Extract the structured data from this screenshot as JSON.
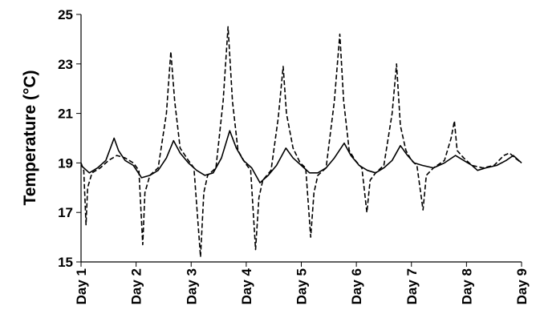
{
  "chart_data": {
    "type": "line",
    "title": "",
    "xlabel": "",
    "ylabel": "Temperature (°C)",
    "ylim": [
      15,
      25
    ],
    "xlim": [
      1,
      9
    ],
    "yticks": [
      15,
      17,
      19,
      21,
      23,
      25
    ],
    "xticks": [
      {
        "value": 1,
        "label": "Day 1"
      },
      {
        "value": 2,
        "label": "Day 2"
      },
      {
        "value": 3,
        "label": "Day 3"
      },
      {
        "value": 4,
        "label": "Day 4"
      },
      {
        "value": 5,
        "label": "Day 5"
      },
      {
        "value": 6,
        "label": "Day 6"
      },
      {
        "value": 7,
        "label": "Day 7"
      },
      {
        "value": 8,
        "label": "Day 8"
      },
      {
        "value": 9,
        "label": "Day 9"
      }
    ],
    "grid": false,
    "legend": "none",
    "series": [
      {
        "style": "dashed",
        "color": "#000000",
        "points": [
          [
            1.0,
            19.0
          ],
          [
            1.05,
            18.7
          ],
          [
            1.09,
            16.5
          ],
          [
            1.12,
            18.0
          ],
          [
            1.2,
            18.6
          ],
          [
            1.35,
            18.8
          ],
          [
            1.5,
            19.1
          ],
          [
            1.65,
            19.3
          ],
          [
            1.8,
            19.2
          ],
          [
            1.95,
            19.0
          ],
          [
            2.05,
            18.7
          ],
          [
            2.12,
            15.7
          ],
          [
            2.16,
            17.8
          ],
          [
            2.25,
            18.5
          ],
          [
            2.4,
            18.8
          ],
          [
            2.55,
            21.0
          ],
          [
            2.63,
            23.5
          ],
          [
            2.7,
            21.5
          ],
          [
            2.8,
            19.6
          ],
          [
            2.95,
            19.1
          ],
          [
            3.05,
            18.8
          ],
          [
            3.17,
            15.2
          ],
          [
            3.23,
            17.8
          ],
          [
            3.3,
            18.5
          ],
          [
            3.45,
            18.8
          ],
          [
            3.58,
            21.5
          ],
          [
            3.67,
            24.5
          ],
          [
            3.75,
            21.5
          ],
          [
            3.85,
            19.5
          ],
          [
            3.98,
            19.0
          ],
          [
            4.08,
            18.7
          ],
          [
            4.17,
            15.5
          ],
          [
            4.23,
            17.6
          ],
          [
            4.3,
            18.3
          ],
          [
            4.45,
            18.7
          ],
          [
            4.58,
            20.8
          ],
          [
            4.67,
            22.9
          ],
          [
            4.73,
            21.0
          ],
          [
            4.85,
            19.6
          ],
          [
            4.98,
            19.0
          ],
          [
            5.08,
            18.8
          ],
          [
            5.17,
            16.0
          ],
          [
            5.23,
            17.8
          ],
          [
            5.3,
            18.5
          ],
          [
            5.45,
            18.8
          ],
          [
            5.6,
            21.5
          ],
          [
            5.7,
            24.2
          ],
          [
            5.77,
            21.5
          ],
          [
            5.87,
            19.5
          ],
          [
            5.98,
            19.1
          ],
          [
            6.1,
            18.8
          ],
          [
            6.19,
            17.0
          ],
          [
            6.25,
            18.3
          ],
          [
            6.35,
            18.6
          ],
          [
            6.5,
            18.9
          ],
          [
            6.65,
            21.0
          ],
          [
            6.73,
            23.0
          ],
          [
            6.8,
            20.5
          ],
          [
            6.9,
            19.5
          ],
          [
            7.0,
            19.1
          ],
          [
            7.1,
            18.9
          ],
          [
            7.21,
            17.1
          ],
          [
            7.27,
            18.5
          ],
          [
            7.4,
            18.8
          ],
          [
            7.6,
            19.1
          ],
          [
            7.72,
            20.0
          ],
          [
            7.78,
            20.7
          ],
          [
            7.83,
            19.5
          ],
          [
            7.95,
            19.2
          ],
          [
            8.1,
            18.9
          ],
          [
            8.3,
            18.8
          ],
          [
            8.5,
            18.9
          ],
          [
            8.68,
            19.3
          ],
          [
            8.78,
            19.4
          ],
          [
            8.88,
            19.2
          ],
          [
            9.0,
            19.0
          ]
        ]
      },
      {
        "style": "solid",
        "color": "#000000",
        "points": [
          [
            1.0,
            18.9
          ],
          [
            1.15,
            18.6
          ],
          [
            1.3,
            18.8
          ],
          [
            1.45,
            19.1
          ],
          [
            1.6,
            20.0
          ],
          [
            1.68,
            19.5
          ],
          [
            1.8,
            19.1
          ],
          [
            1.95,
            18.9
          ],
          [
            2.1,
            18.4
          ],
          [
            2.25,
            18.5
          ],
          [
            2.4,
            18.7
          ],
          [
            2.55,
            19.2
          ],
          [
            2.68,
            19.9
          ],
          [
            2.8,
            19.4
          ],
          [
            2.95,
            19.0
          ],
          [
            3.1,
            18.7
          ],
          [
            3.25,
            18.5
          ],
          [
            3.4,
            18.6
          ],
          [
            3.55,
            19.2
          ],
          [
            3.7,
            20.3
          ],
          [
            3.82,
            19.6
          ],
          [
            3.95,
            19.1
          ],
          [
            4.1,
            18.8
          ],
          [
            4.25,
            18.2
          ],
          [
            4.4,
            18.5
          ],
          [
            4.55,
            18.9
          ],
          [
            4.72,
            19.6
          ],
          [
            4.85,
            19.2
          ],
          [
            5.0,
            18.9
          ],
          [
            5.15,
            18.6
          ],
          [
            5.3,
            18.6
          ],
          [
            5.45,
            18.8
          ],
          [
            5.6,
            19.2
          ],
          [
            5.78,
            19.8
          ],
          [
            5.9,
            19.3
          ],
          [
            6.05,
            18.9
          ],
          [
            6.2,
            18.7
          ],
          [
            6.35,
            18.6
          ],
          [
            6.5,
            18.8
          ],
          [
            6.65,
            19.1
          ],
          [
            6.8,
            19.7
          ],
          [
            6.93,
            19.3
          ],
          [
            7.05,
            19.0
          ],
          [
            7.2,
            18.9
          ],
          [
            7.4,
            18.8
          ],
          [
            7.6,
            19.0
          ],
          [
            7.8,
            19.3
          ],
          [
            7.95,
            19.1
          ],
          [
            8.1,
            18.9
          ],
          [
            8.2,
            18.7
          ],
          [
            8.35,
            18.8
          ],
          [
            8.55,
            18.9
          ],
          [
            8.72,
            19.1
          ],
          [
            8.85,
            19.3
          ],
          [
            8.95,
            19.1
          ],
          [
            9.0,
            19.0
          ]
        ]
      }
    ]
  }
}
